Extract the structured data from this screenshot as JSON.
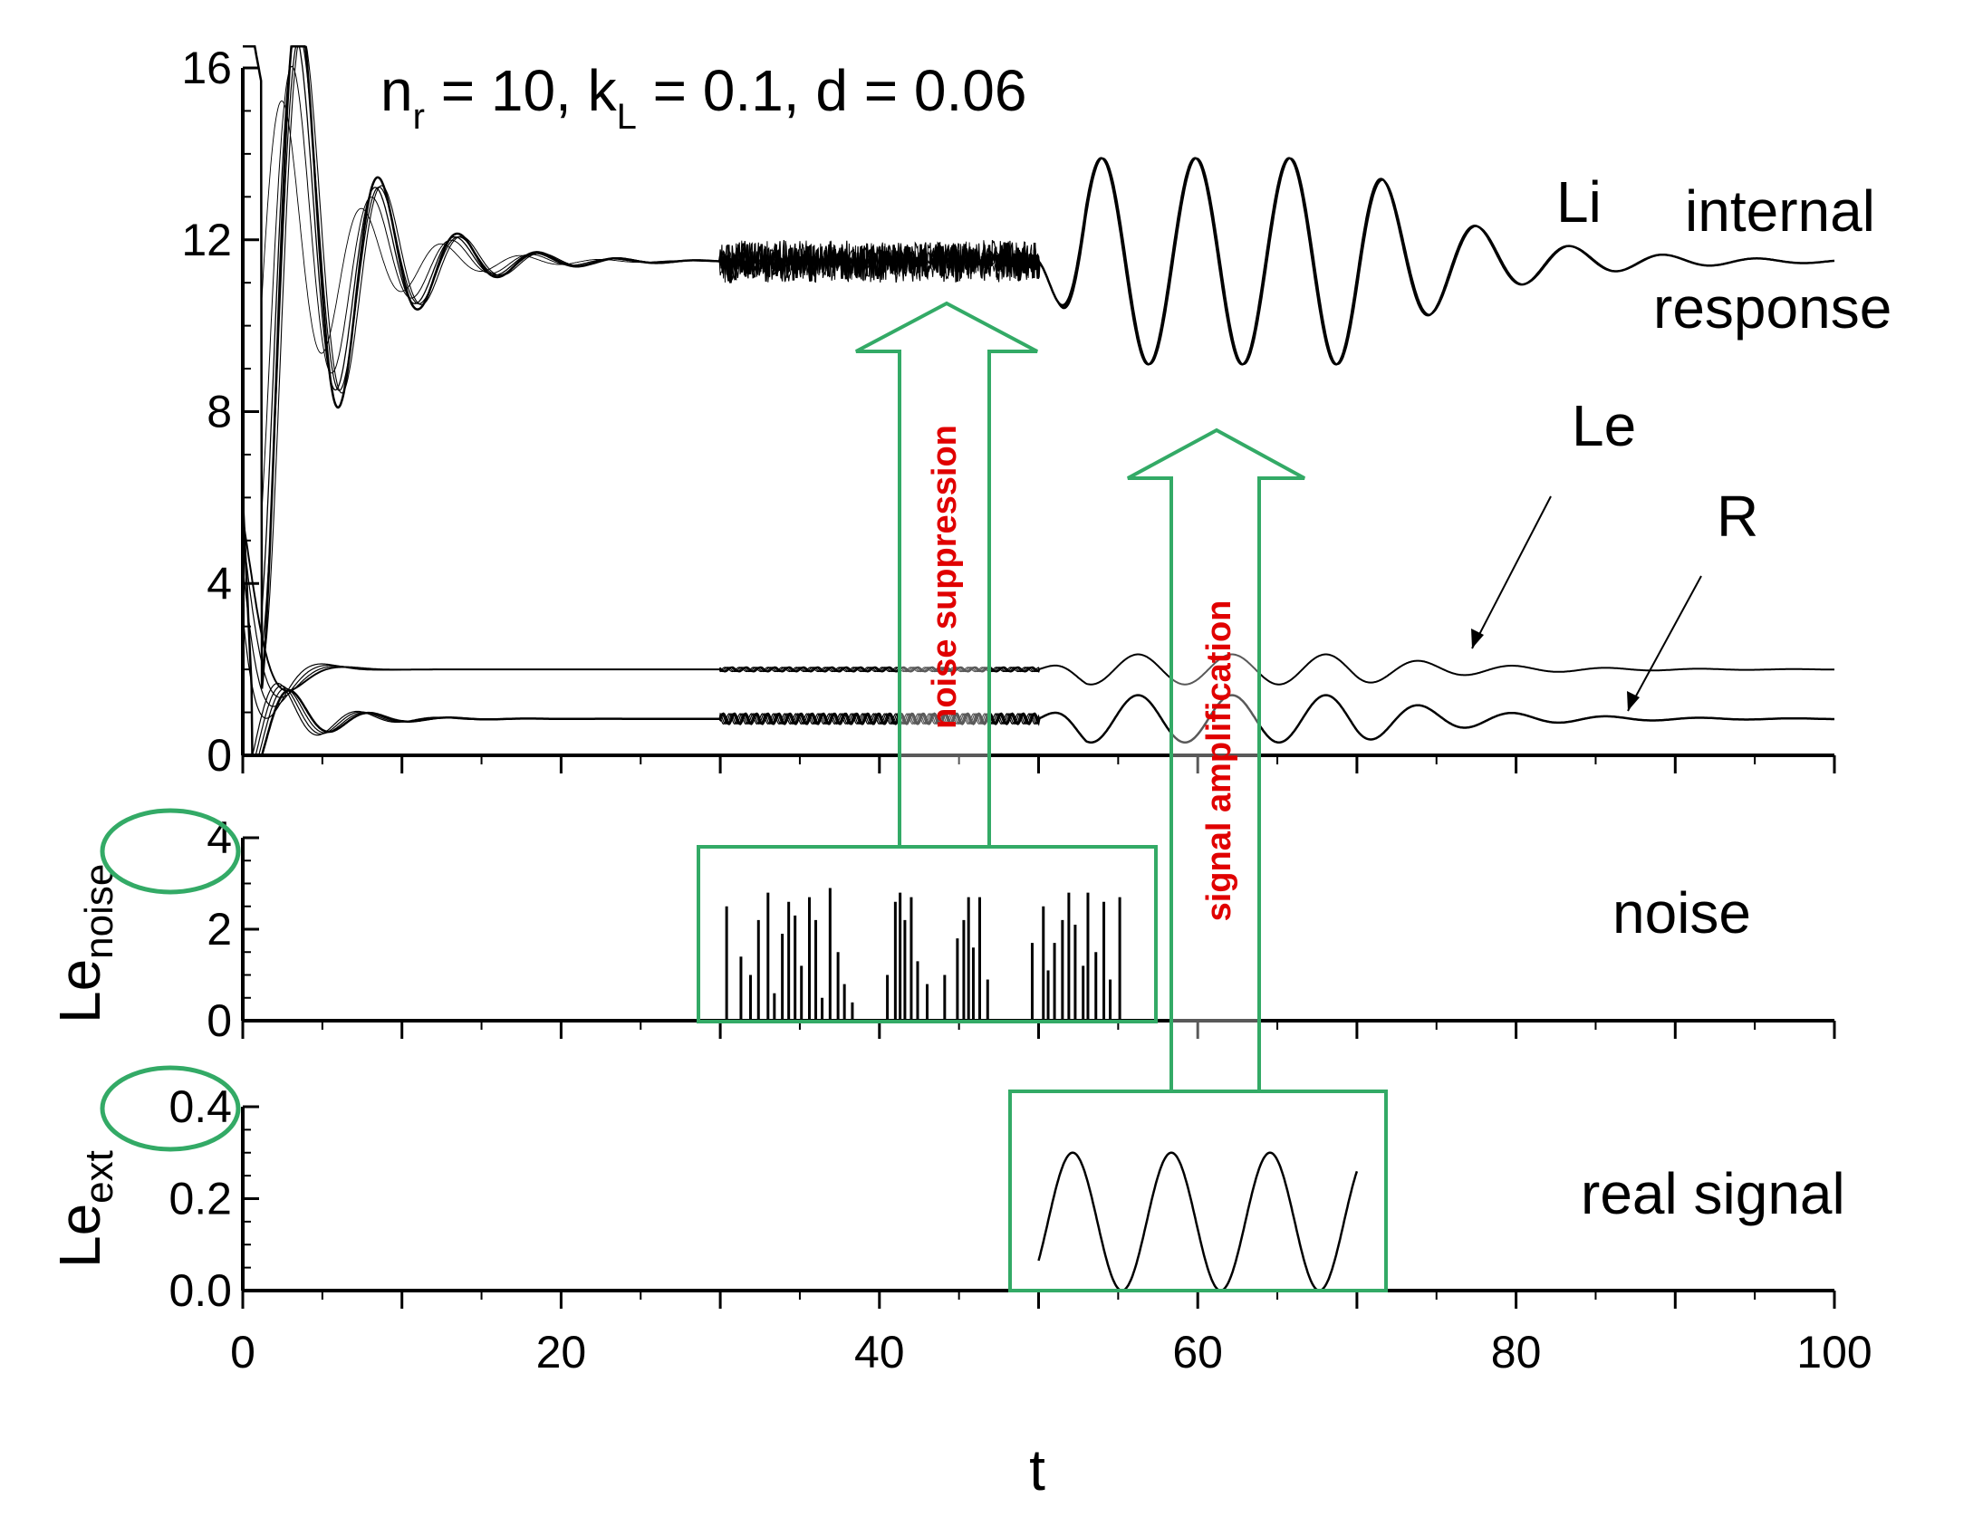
{
  "chart_data": [
    {
      "type": "line",
      "panel": "top",
      "title": "n_r = 10, k_L = 0.1, d = 0.06",
      "title_parts": {
        "n": "n",
        "n_sub": "r",
        "mid1": " = 10, k",
        "k_sub": "L",
        "mid2": " = 0.1, d = 0.06"
      },
      "xlabel": "t",
      "ylabel": "",
      "xlim": [
        0,
        100
      ],
      "ylim": [
        0,
        16
      ],
      "yticks": [
        "0",
        "4",
        "8",
        "12",
        "16"
      ],
      "series": [
        {
          "name": "Li",
          "description": "internal response; oscillates after transient, noisy band at t=30-50, amplified oscillation after t=50",
          "settle": 11.5
        },
        {
          "name": "Le",
          "settle": 2.0
        },
        {
          "name": "R",
          "settle": 0.85
        }
      ],
      "labels": {
        "li": "Li",
        "le": "Le",
        "r": "R",
        "internal": "internal",
        "response": "response"
      }
    },
    {
      "type": "bar",
      "panel": "middle",
      "ylabel": "Le",
      "ylabel_sub": "noise",
      "ylim": [
        0,
        4
      ],
      "yticks": [
        "0",
        "2",
        "4"
      ],
      "side_label": "noise",
      "noise_window": [
        30,
        56
      ],
      "pulses": [
        [
          30.4,
          2.5
        ],
        [
          31.3,
          1.4
        ],
        [
          31.9,
          1.0
        ],
        [
          32.4,
          2.2
        ],
        [
          33.0,
          2.8
        ],
        [
          33.4,
          0.6
        ],
        [
          33.9,
          1.9
        ],
        [
          34.3,
          2.6
        ],
        [
          34.7,
          2.3
        ],
        [
          35.1,
          1.2
        ],
        [
          35.6,
          2.7
        ],
        [
          36.0,
          2.2
        ],
        [
          36.4,
          0.5
        ],
        [
          36.9,
          2.9
        ],
        [
          37.4,
          1.5
        ],
        [
          37.8,
          0.8
        ],
        [
          38.3,
          0.4
        ],
        [
          40.5,
          1.0
        ],
        [
          41.0,
          2.6
        ],
        [
          41.3,
          2.8
        ],
        [
          41.6,
          2.2
        ],
        [
          42.0,
          2.7
        ],
        [
          42.4,
          1.3
        ],
        [
          43.0,
          0.8
        ],
        [
          44.1,
          1.0
        ],
        [
          44.9,
          1.8
        ],
        [
          45.3,
          2.2
        ],
        [
          45.6,
          2.7
        ],
        [
          45.9,
          1.6
        ],
        [
          46.3,
          2.7
        ],
        [
          46.8,
          0.9
        ],
        [
          49.6,
          1.7
        ],
        [
          50.3,
          2.5
        ],
        [
          50.6,
          1.1
        ],
        [
          51.0,
          1.7
        ],
        [
          51.5,
          2.2
        ],
        [
          51.9,
          2.8
        ],
        [
          52.3,
          2.1
        ],
        [
          52.8,
          1.2
        ],
        [
          53.1,
          2.8
        ],
        [
          53.6,
          1.5
        ],
        [
          54.1,
          2.6
        ],
        [
          54.5,
          0.9
        ],
        [
          55.1,
          2.7
        ]
      ]
    },
    {
      "type": "line",
      "panel": "bottom",
      "ylabel": "Le",
      "ylabel_sub": "ext",
      "ylim": [
        0,
        0.4
      ],
      "yticks": [
        "0.0",
        "0.2",
        "0.4"
      ],
      "side_label": "real signal",
      "signal": {
        "t_start": 50,
        "t_end": 70,
        "amplitude": 0.15,
        "offset": 0.15,
        "period": 6.2
      },
      "xticks": [
        "0",
        "20",
        "40",
        "60",
        "80",
        "100"
      ],
      "xlabel": "t"
    }
  ],
  "annotations": {
    "noise_suppression": "noise suppression",
    "signal_amplification": "signal amplification"
  },
  "colors": {
    "axis": "#000000",
    "curve": "#000000",
    "arrow": "#33aa66",
    "annotation": "#e00000"
  }
}
